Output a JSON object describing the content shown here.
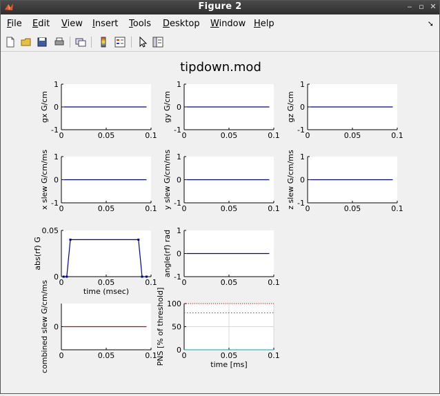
{
  "window": {
    "title": "Figure 2"
  },
  "menu": [
    {
      "key": "F",
      "rest": "ile"
    },
    {
      "key": "E",
      "rest": "dit"
    },
    {
      "key": "V",
      "rest": "iew"
    },
    {
      "key": "I",
      "rest": "nsert"
    },
    {
      "key": "T",
      "rest": "ools"
    },
    {
      "key": "D",
      "rest": "esktop"
    },
    {
      "key": "W",
      "rest": "indow"
    },
    {
      "key": "H",
      "rest": "elp"
    }
  ],
  "toolbar_icons": [
    "new-figure-icon",
    "open-file-icon",
    "save-icon",
    "print-icon",
    "link-plot-icon",
    "colorbar-icon",
    "legend-icon",
    "pointer-icon",
    "property-editor-icon"
  ],
  "figure_title": "tipdown.mod",
  "colors": {
    "trace_blue": "#00008b",
    "trace_red": "#cc0000",
    "trace_magenta": "#cc00cc",
    "trace_cyan": "#00aaaa"
  },
  "chart_data": [
    {
      "type": "line",
      "ylabel": "gx G/cm",
      "xticks": [
        "0",
        "0.05",
        "0.1"
      ],
      "yticks": [
        "1",
        "0",
        "-1"
      ],
      "xlim": [
        0,
        0.1
      ],
      "ylim": [
        -1,
        1
      ],
      "x": [
        0.0025,
        0.095
      ],
      "y": [
        0,
        0
      ]
    },
    {
      "type": "line",
      "ylabel": "gy G/cm",
      "xticks": [
        "0",
        "0.05",
        "0.1"
      ],
      "yticks": [
        "1",
        "0",
        "-1"
      ],
      "xlim": [
        0,
        0.1
      ],
      "ylim": [
        -1,
        1
      ],
      "x": [
        0.0025,
        0.095
      ],
      "y": [
        0,
        0
      ]
    },
    {
      "type": "line",
      "ylabel": "gz G/cm",
      "xticks": [
        "0",
        "0.05",
        "0.1"
      ],
      "yticks": [
        "1",
        "0",
        "-1"
      ],
      "xlim": [
        0,
        0.1
      ],
      "ylim": [
        -1,
        1
      ],
      "x": [
        0.0025,
        0.095
      ],
      "y": [
        0,
        0
      ]
    },
    {
      "type": "line",
      "ylabel": "x slew  G/cm/ms",
      "xticks": [
        "0",
        "0.05",
        "0.1"
      ],
      "yticks": [
        "1",
        "0",
        "-1"
      ],
      "xlim": [
        0,
        0.1
      ],
      "ylim": [
        -1,
        1
      ],
      "x": [
        0.0025,
        0.095
      ],
      "y": [
        0,
        0
      ]
    },
    {
      "type": "line",
      "ylabel": "y slew  G/cm/ms",
      "xticks": [
        "0",
        "0.05",
        "0.1"
      ],
      "yticks": [
        "1",
        "0",
        "-1"
      ],
      "xlim": [
        0,
        0.1
      ],
      "ylim": [
        -1,
        1
      ],
      "x": [
        0.0025,
        0.095
      ],
      "y": [
        0,
        0
      ]
    },
    {
      "type": "line",
      "ylabel": "z slew  G/cm/ms",
      "xticks": [
        "0",
        "0.05",
        "0.1"
      ],
      "yticks": [
        "1",
        "0",
        "-1"
      ],
      "xlim": [
        0,
        0.1
      ],
      "ylim": [
        -1,
        1
      ],
      "x": [
        0.0025,
        0.095
      ],
      "y": [
        0,
        0
      ]
    },
    {
      "type": "line",
      "ylabel": "abs(rf)  G",
      "xlabel": "time (msec)",
      "xticks": [
        "0",
        "0.05",
        "0.1"
      ],
      "yticks": [
        "0.05",
        "0"
      ],
      "xlim": [
        0,
        0.1
      ],
      "ylim": [
        0,
        0.05
      ],
      "x": [
        0.0025,
        0.006,
        0.01,
        0.086,
        0.09,
        0.095
      ],
      "y": [
        0,
        0,
        0.04,
        0.04,
        0,
        0
      ]
    },
    {
      "type": "line",
      "ylabel": "angle(rf)  rad",
      "xticks": [
        "0",
        "0.05",
        "0.1"
      ],
      "yticks": [
        "1",
        "0",
        "-1"
      ],
      "xlim": [
        0,
        0.1
      ],
      "ylim": [
        -1,
        1
      ],
      "x": [
        0.0025,
        0.095
      ],
      "y": [
        0,
        0
      ]
    },
    {
      "type": "line",
      "ylabel": "combined slew  G/cm/ms",
      "xticks": [
        "0",
        "0.05",
        "0.1"
      ],
      "yticks": [
        "0"
      ],
      "xlim": [
        0,
        0.1
      ],
      "ylim": [
        -1,
        1
      ],
      "x": [
        0.0025,
        0.095
      ],
      "y": [
        0,
        0
      ]
    },
    {
      "type": "line",
      "ylabel": "PNS [% of threshold]",
      "xlabel": "time [ms]",
      "xticks": [
        "0",
        "0.05",
        "0.1"
      ],
      "yticks": [
        "100",
        "50",
        "0"
      ],
      "xlim": [
        0,
        0.1
      ],
      "ylim": [
        0,
        100
      ],
      "grid": true,
      "series": [
        {
          "x": [
            0,
            0.1
          ],
          "y": [
            80,
            80
          ]
        },
        {
          "x": [
            0,
            0.1
          ],
          "y": [
            100,
            100
          ]
        },
        {
          "x": [
            0,
            0.1
          ],
          "y": [
            0,
            0
          ]
        }
      ]
    }
  ]
}
